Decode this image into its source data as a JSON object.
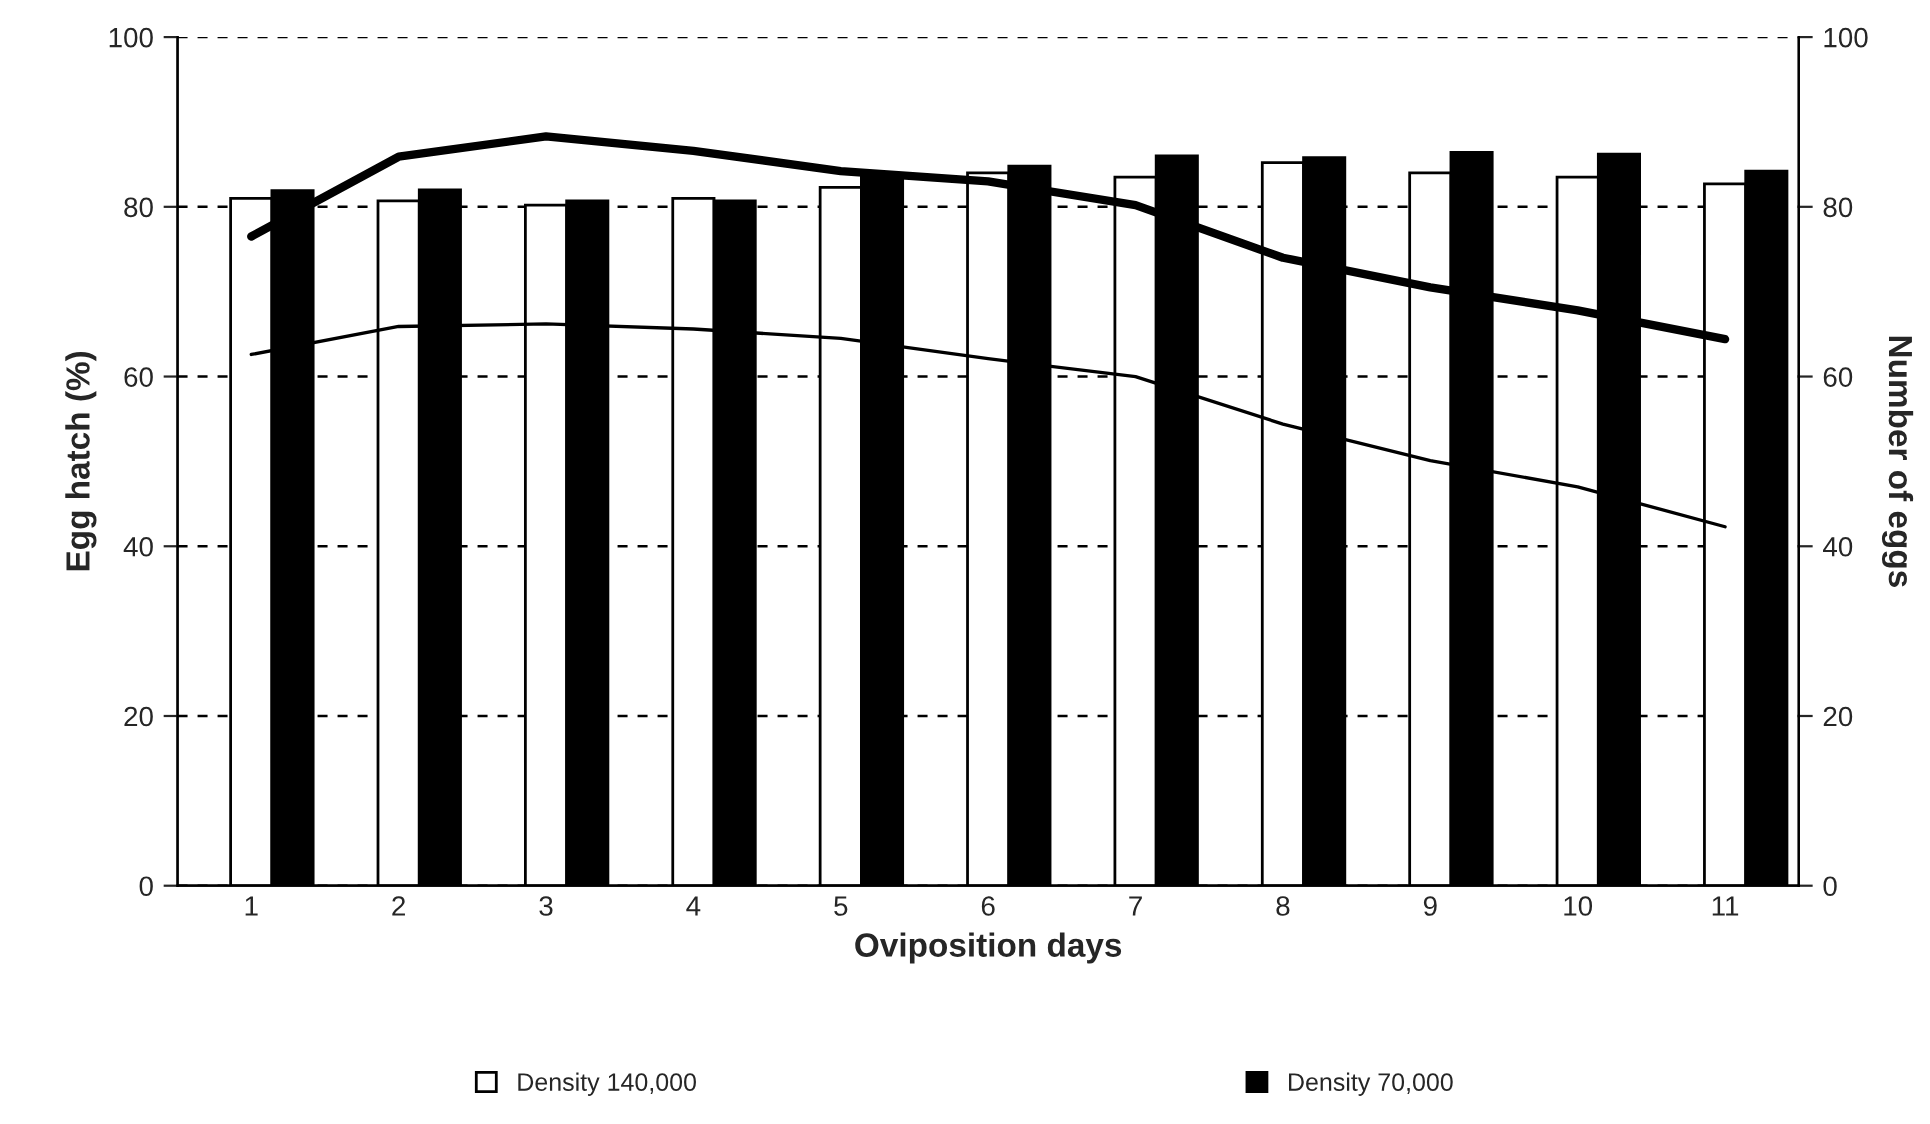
{
  "chart_data": {
    "type": "bar",
    "xlabel": "Oviposition days",
    "ylabel": "Egg hatch (%)",
    "y2label": "Number of eggs",
    "categories": [
      "1",
      "2",
      "3",
      "4",
      "5",
      "6",
      "7",
      "8",
      "9",
      "10",
      "11"
    ],
    "series": [
      {
        "name": "Density 140,000",
        "color": "#ffffff",
        "values": [
          81,
          80.7,
          80.2,
          81,
          82.3,
          84,
          83.5,
          85.2,
          84,
          83.5,
          82.7
        ]
      },
      {
        "name": "Density 70,000",
        "color": "#000000",
        "values": [
          81.9,
          82,
          80.7,
          80.7,
          83.7,
          84.8,
          86,
          85.8,
          86.4,
          86.2,
          84.2
        ]
      },
      {
        "type": "line",
        "axis": "y2",
        "color": "#000000",
        "values": [
          76.5,
          85.9,
          88.3,
          86.6,
          84.2,
          83,
          80.2,
          74,
          70.5,
          67.8,
          64.4
        ]
      },
      {
        "type": "line",
        "axis": "y2",
        "color": "#000000",
        "values": [
          62.6,
          65.9,
          66.2,
          65.6,
          64.5,
          62.1,
          60,
          54.4,
          50.1,
          47,
          42.3
        ]
      }
    ],
    "ylim": [
      0,
      100
    ],
    "yticks": [
      0,
      20,
      40,
      60,
      80,
      100
    ],
    "y2lim": [
      0,
      100
    ],
    "y2ticks": [
      0,
      20,
      40,
      60,
      80,
      100
    ],
    "grid": "y",
    "legend": "bottom",
    "marker": "none",
    "line_style": "solid"
  }
}
